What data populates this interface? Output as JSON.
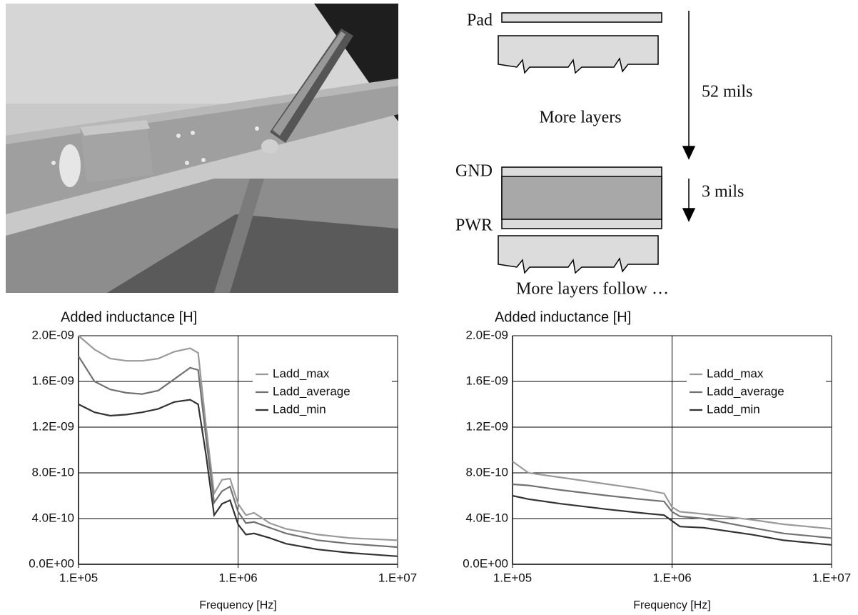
{
  "diagram": {
    "pad": "Pad",
    "more_layers": "More layers",
    "distance_1": "52 mils",
    "gnd": "GND",
    "distance_2": "3 mils",
    "pwr": "PWR",
    "more_layers_follow": "More layers follow …"
  },
  "chart_data": [
    {
      "type": "line",
      "title": "Added inductance [H]",
      "xlabel": "Frequency [Hz]",
      "xscale": "log",
      "grid": true,
      "legend": "upper right",
      "xlim": [
        100000,
        10000000
      ],
      "ylim": [
        0,
        2e-09
      ],
      "xticks": [
        {
          "value": 100000,
          "label": "1.E+05"
        },
        {
          "value": 1000000,
          "label": "1.E+06"
        },
        {
          "value": 10000000,
          "label": "1.E+07"
        }
      ],
      "yticks": [
        {
          "value": 0,
          "label": "0.0E+00"
        },
        {
          "value": 4e-10,
          "label": "4.0E-10"
        },
        {
          "value": 8e-10,
          "label": "8.0E-10"
        },
        {
          "value": 1.2e-09,
          "label": "1.2E-09"
        },
        {
          "value": 1.6e-09,
          "label": "1.6E-09"
        },
        {
          "value": 2e-09,
          "label": "2.0E-09"
        }
      ],
      "x": [
        100000,
        126000,
        158000,
        200000,
        251000,
        316000,
        398000,
        501000,
        562000,
        631000,
        708000,
        794000,
        891000,
        1000000,
        1120000,
        1260000,
        1580000,
        2000000,
        3160000,
        5010000,
        10000000
      ],
      "series": [
        {
          "name": "Ladd_max",
          "color": "#9a9a9a",
          "values": [
            2e-09,
            1.88e-09,
            1.8e-09,
            1.78e-09,
            1.78e-09,
            1.8e-09,
            1.86e-09,
            1.89e-09,
            1.85e-09,
            1.2e-09,
            6.2e-10,
            7.4e-10,
            7.5e-10,
            5.3e-10,
            4.3e-10,
            4.5e-10,
            3.6e-10,
            3.1e-10,
            2.6e-10,
            2.3e-10,
            2.1e-10
          ]
        },
        {
          "name": "Ladd_average",
          "color": "#727272",
          "values": [
            1.82e-09,
            1.6e-09,
            1.53e-09,
            1.5e-09,
            1.49e-09,
            1.52e-09,
            1.62e-09,
            1.72e-09,
            1.7e-09,
            1.1e-09,
            5.4e-10,
            6.4e-10,
            6.8e-10,
            4.6e-10,
            3.6e-10,
            3.7e-10,
            3.2e-10,
            2.7e-10,
            2.1e-10,
            1.8e-10,
            1.5e-10
          ]
        },
        {
          "name": "Ladd_min",
          "color": "#333333",
          "values": [
            1.4e-09,
            1.33e-09,
            1.3e-09,
            1.31e-09,
            1.33e-09,
            1.36e-09,
            1.42e-09,
            1.44e-09,
            1.4e-09,
            9.5e-10,
            4.3e-10,
            5.3e-10,
            5.6e-10,
            3.5e-10,
            2.6e-10,
            2.7e-10,
            2.3e-10,
            1.8e-10,
            1.3e-10,
            1e-10,
            7e-11
          ]
        }
      ]
    },
    {
      "type": "line",
      "title": "Added inductance [H]",
      "xlabel": "Frequency [Hz]",
      "xscale": "log",
      "grid": true,
      "legend": "upper right",
      "xlim": [
        100000,
        10000000
      ],
      "ylim": [
        0,
        2e-09
      ],
      "xticks": [
        {
          "value": 100000,
          "label": "1.E+05"
        },
        {
          "value": 1000000,
          "label": "1.E+06"
        },
        {
          "value": 10000000,
          "label": "1.E+07"
        }
      ],
      "yticks": [
        {
          "value": 0,
          "label": "0.0E+00"
        },
        {
          "value": 4e-10,
          "label": "4.0E-10"
        },
        {
          "value": 8e-10,
          "label": "8.0E-10"
        },
        {
          "value": 1.2e-09,
          "label": "1.2E-09"
        },
        {
          "value": 1.6e-09,
          "label": "1.6E-09"
        },
        {
          "value": 2e-09,
          "label": "2.0E-09"
        }
      ],
      "x": [
        100000,
        126000,
        200000,
        398000,
        631000,
        891000,
        1000000,
        1120000,
        1580000,
        3160000,
        5010000,
        10000000
      ],
      "series": [
        {
          "name": "Ladd_max",
          "color": "#9a9a9a",
          "values": [
            9e-10,
            8e-10,
            7.6e-10,
            7e-10,
            6.6e-10,
            6.2e-10,
            5e-10,
            4.6e-10,
            4.4e-10,
            3.9e-10,
            3.5e-10,
            3.1e-10
          ]
        },
        {
          "name": "Ladd_average",
          "color": "#727272",
          "values": [
            7e-10,
            6.9e-10,
            6.5e-10,
            6e-10,
            5.7e-10,
            5.5e-10,
            4.6e-10,
            4.2e-10,
            4e-10,
            3.2e-10,
            2.7e-10,
            2.3e-10
          ]
        },
        {
          "name": "Ladd_min",
          "color": "#333333",
          "values": [
            6e-10,
            5.7e-10,
            5.3e-10,
            4.8e-10,
            4.5e-10,
            4.3e-10,
            3.8e-10,
            3.3e-10,
            3.2e-10,
            2.6e-10,
            2.1e-10,
            1.7e-10
          ]
        }
      ]
    }
  ]
}
